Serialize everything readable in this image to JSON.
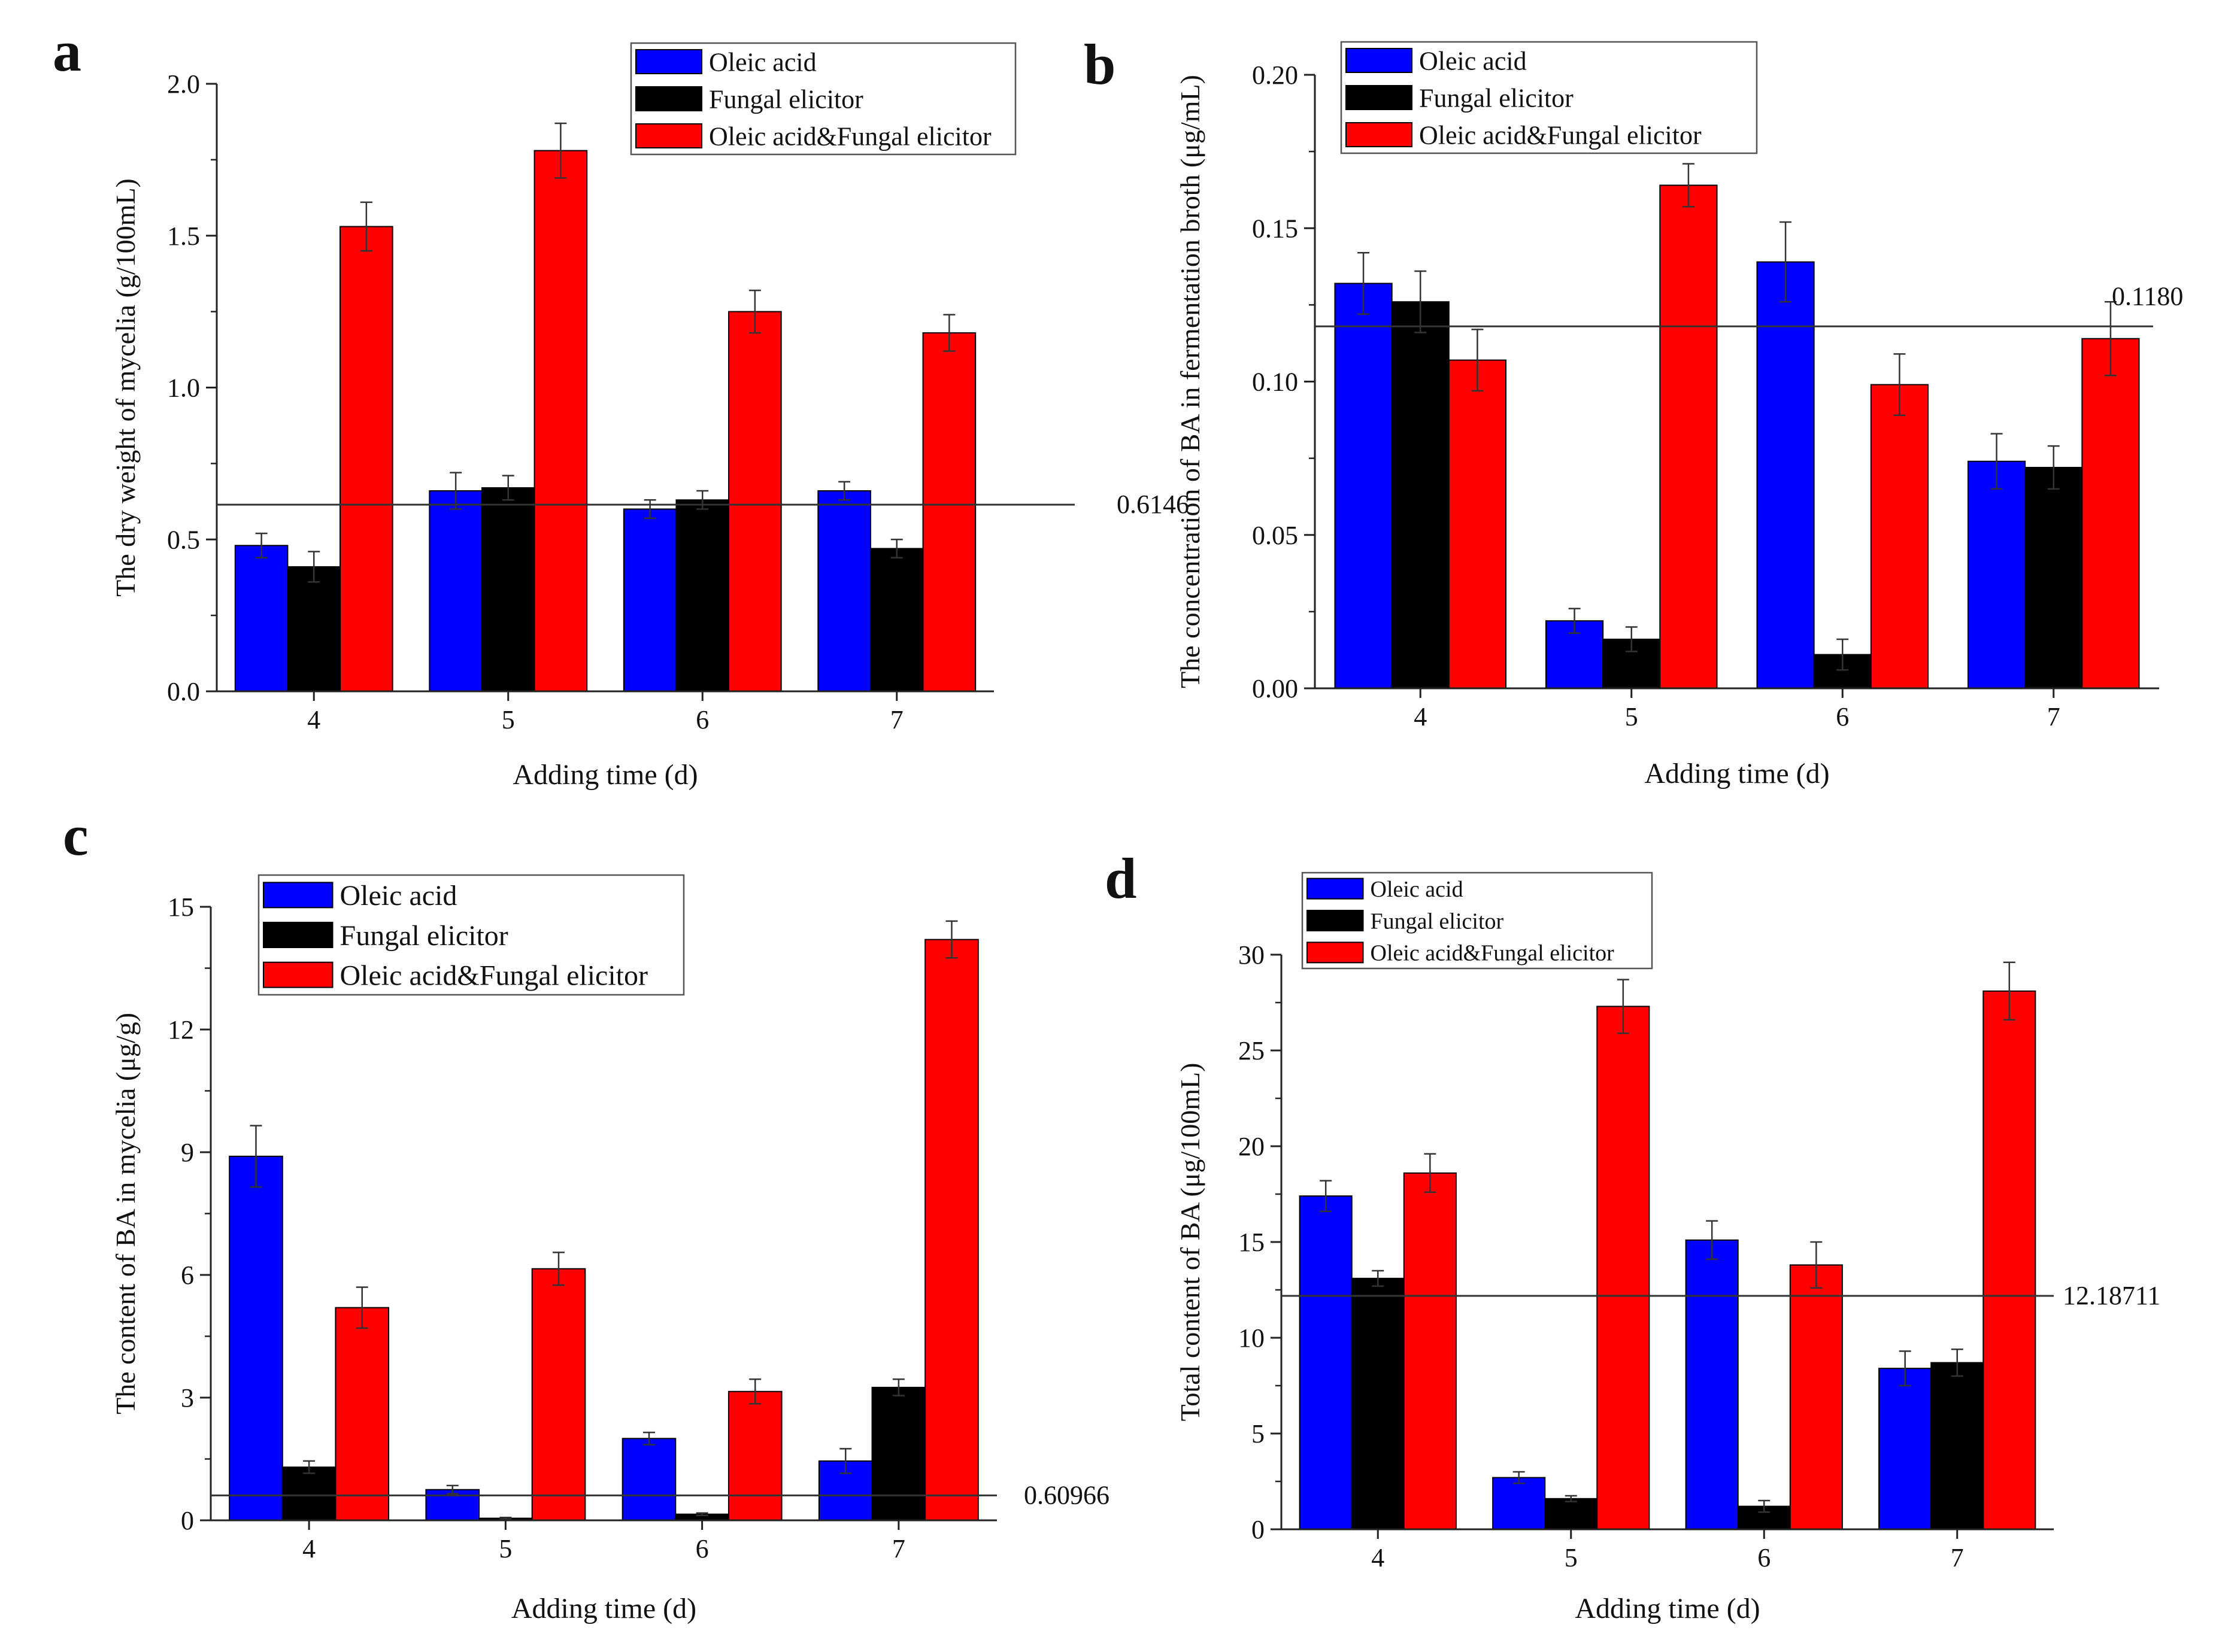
{
  "colors": {
    "oleic": "#0000ff",
    "fungal": "#000000",
    "combo": "#ff0000",
    "axis": "#222222"
  },
  "legend": [
    "Oleic acid",
    "Fungal elicitor",
    "Oleic acid&Fungal elicitor"
  ],
  "chart_data": [
    {
      "panel": "a",
      "type": "bar",
      "xlabel": "Adding time (d)",
      "ylabel": "The dry weight of mycelia (g/100mL)",
      "categories": [
        "4",
        "5",
        "6",
        "7"
      ],
      "ylim": [
        0,
        2.0
      ],
      "yticks": [
        "0.0",
        "0.5",
        "1.0",
        "1.5",
        "2.0"
      ],
      "series": [
        {
          "name": "Oleic acid",
          "values": [
            0.48,
            0.66,
            0.6,
            0.66
          ],
          "errors": [
            0.04,
            0.06,
            0.03,
            0.03
          ]
        },
        {
          "name": "Fungal elicitor",
          "values": [
            0.41,
            0.67,
            0.63,
            0.47
          ],
          "errors": [
            0.05,
            0.04,
            0.03,
            0.03
          ]
        },
        {
          "name": "Oleic acid&Fungal elicitor",
          "values": [
            1.53,
            1.78,
            1.25,
            1.18
          ],
          "errors": [
            0.08,
            0.09,
            0.07,
            0.06
          ]
        }
      ],
      "reference_line": {
        "value": 0.6146,
        "label": "0.6146"
      }
    },
    {
      "panel": "b",
      "type": "bar",
      "xlabel": "Adding time (d)",
      "ylabel": "The concentration of BA in fermentation broth (μg/mL)",
      "categories": [
        "4",
        "5",
        "6",
        "7"
      ],
      "ylim": [
        0,
        0.2
      ],
      "yticks": [
        "0.00",
        "0.05",
        "0.10",
        "0.15",
        "0.20"
      ],
      "series": [
        {
          "name": "Oleic acid",
          "values": [
            0.132,
            0.022,
            0.139,
            0.074
          ],
          "errors": [
            0.01,
            0.004,
            0.013,
            0.009
          ]
        },
        {
          "name": "Fungal elicitor",
          "values": [
            0.126,
            0.016,
            0.011,
            0.072
          ],
          "errors": [
            0.01,
            0.004,
            0.005,
            0.007
          ]
        },
        {
          "name": "Oleic acid&Fungal elicitor",
          "values": [
            0.107,
            0.164,
            0.099,
            0.114
          ],
          "errors": [
            0.01,
            0.007,
            0.01,
            0.012
          ]
        }
      ],
      "reference_line": {
        "value": 0.118,
        "label": "0.1180"
      }
    },
    {
      "panel": "c",
      "type": "bar",
      "xlabel": "Adding time (d)",
      "ylabel": "The content of BA in mycelia (μg/g)",
      "categories": [
        "4",
        "5",
        "6",
        "7"
      ],
      "ylim": [
        0,
        15
      ],
      "yticks": [
        "0",
        "3",
        "6",
        "9",
        "12",
        "15"
      ],
      "series": [
        {
          "name": "Oleic acid",
          "values": [
            8.9,
            0.75,
            2.0,
            1.45
          ],
          "errors": [
            0.75,
            0.1,
            0.15,
            0.3
          ]
        },
        {
          "name": "Fungal elicitor",
          "values": [
            1.3,
            0.05,
            0.15,
            3.25
          ],
          "errors": [
            0.15,
            0.02,
            0.03,
            0.2
          ]
        },
        {
          "name": "Oleic acid&Fungal elicitor",
          "values": [
            5.2,
            6.15,
            3.15,
            14.2
          ],
          "errors": [
            0.5,
            0.4,
            0.3,
            0.45
          ]
        }
      ],
      "reference_line": {
        "value": 0.60966,
        "label": "0.60966"
      }
    },
    {
      "panel": "d",
      "type": "bar",
      "xlabel": "Adding time (d)",
      "ylabel": "Total content of BA (μg/100mL)",
      "categories": [
        "4",
        "5",
        "6",
        "7"
      ],
      "ylim": [
        0,
        30
      ],
      "yticks": [
        "0",
        "5",
        "10",
        "15",
        "20",
        "25",
        "30"
      ],
      "series": [
        {
          "name": "Oleic acid",
          "values": [
            17.4,
            2.7,
            15.1,
            8.4
          ],
          "errors": [
            0.8,
            0.3,
            1.0,
            0.9
          ]
        },
        {
          "name": "Fungal elicitor",
          "values": [
            13.1,
            1.6,
            1.2,
            8.7
          ],
          "errors": [
            0.4,
            0.15,
            0.3,
            0.7
          ]
        },
        {
          "name": "Oleic acid&Fungal elicitor",
          "values": [
            18.6,
            27.3,
            13.8,
            28.1
          ],
          "errors": [
            1.0,
            1.4,
            1.2,
            1.5
          ]
        }
      ],
      "reference_line": {
        "value": 12.18711,
        "label": "12.18711"
      }
    }
  ]
}
